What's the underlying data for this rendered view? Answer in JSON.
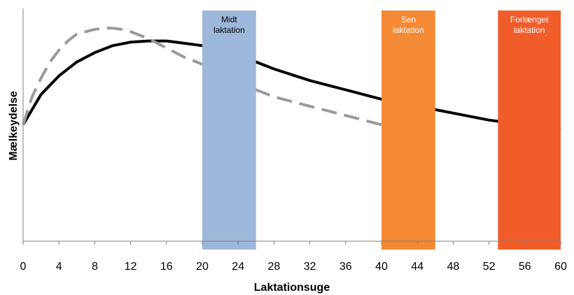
{
  "chart_data": {
    "type": "line",
    "xlabel": "Laktationsuge",
    "ylabel": "Mælkeydelse",
    "xlim": [
      0,
      60
    ],
    "x_ticks": [
      0,
      4,
      8,
      12,
      16,
      20,
      24,
      28,
      32,
      36,
      40,
      44,
      48,
      52,
      56,
      60
    ],
    "grid": false,
    "series": [
      {
        "style": "solid",
        "color": "#000000",
        "x": [
          0,
          2,
          4,
          6,
          8,
          10,
          12,
          14,
          16,
          18,
          20,
          24,
          28,
          32,
          36,
          40,
          44,
          48,
          52,
          56,
          60
        ],
        "y": [
          0.5,
          0.63,
          0.71,
          0.77,
          0.81,
          0.84,
          0.855,
          0.86,
          0.86,
          0.85,
          0.84,
          0.8,
          0.74,
          0.69,
          0.65,
          0.61,
          0.58,
          0.55,
          0.52,
          0.5,
          0.48
        ]
      },
      {
        "style": "dashed",
        "color": "#9a9a9c",
        "x": [
          0,
          1,
          2,
          3,
          4,
          5,
          6,
          7,
          8,
          9,
          10,
          11,
          12,
          14,
          16,
          18,
          20,
          22,
          24,
          26,
          28,
          30,
          32,
          34,
          36,
          38,
          40
        ],
        "y": [
          0.5,
          0.62,
          0.7,
          0.77,
          0.82,
          0.86,
          0.89,
          0.9,
          0.91,
          0.915,
          0.915,
          0.91,
          0.9,
          0.87,
          0.83,
          0.79,
          0.76,
          0.72,
          0.68,
          0.65,
          0.62,
          0.6,
          0.58,
          0.56,
          0.54,
          0.52,
          0.5
        ]
      }
    ],
    "bands": [
      {
        "x0": 20,
        "x1": 26,
        "label": [
          "Midt",
          "laktation"
        ],
        "color": "#9db8da",
        "text_color": "#000000"
      },
      {
        "x0": 40,
        "x1": 46,
        "label": [
          "Sen",
          "laktation"
        ],
        "color": "#f48a36",
        "text_color": "#ffffff"
      },
      {
        "x0": 53,
        "x1": 60,
        "label": [
          "Forlænget",
          "laktation"
        ],
        "color": "#f15d2a",
        "text_color": "#ffffff"
      }
    ]
  }
}
